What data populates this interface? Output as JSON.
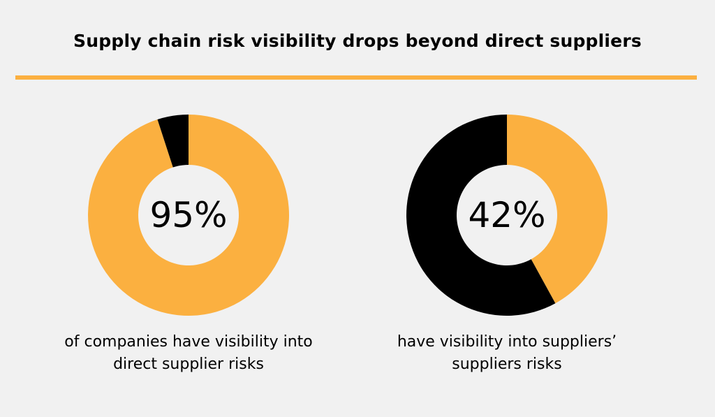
{
  "title": "Supply chain risk visibility drops beyond direct suppliers",
  "colors": {
    "accent": "#fbb040",
    "remainder": "#000000",
    "background": "#f1f1f1"
  },
  "chart_data": [
    {
      "type": "pie",
      "donut": true,
      "value_label": "95%",
      "values": [
        95,
        5
      ],
      "caption": "of companies have visibility into direct supplier risks"
    },
    {
      "type": "pie",
      "donut": true,
      "value_label": "42%",
      "values": [
        42,
        58
      ],
      "caption": "have visibility into suppliers’ suppliers risks"
    }
  ]
}
